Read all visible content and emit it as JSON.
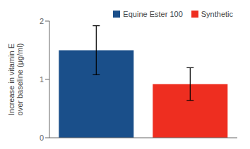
{
  "chart_data": {
    "type": "bar",
    "categories": [
      "Equine Ester 100",
      "Synthetic"
    ],
    "values": [
      1.5,
      0.92
    ],
    "errors": [
      0.42,
      0.28
    ],
    "colors": [
      "#1a4f8a",
      "#ee2e20"
    ],
    "ylabel": "Increase in vitamin E\nover baseline (μg/ml)",
    "ylim": [
      0,
      2
    ],
    "yticks": [
      0,
      1,
      2
    ],
    "legend": "upper right",
    "tick_labels": "y",
    "grid": false
  }
}
